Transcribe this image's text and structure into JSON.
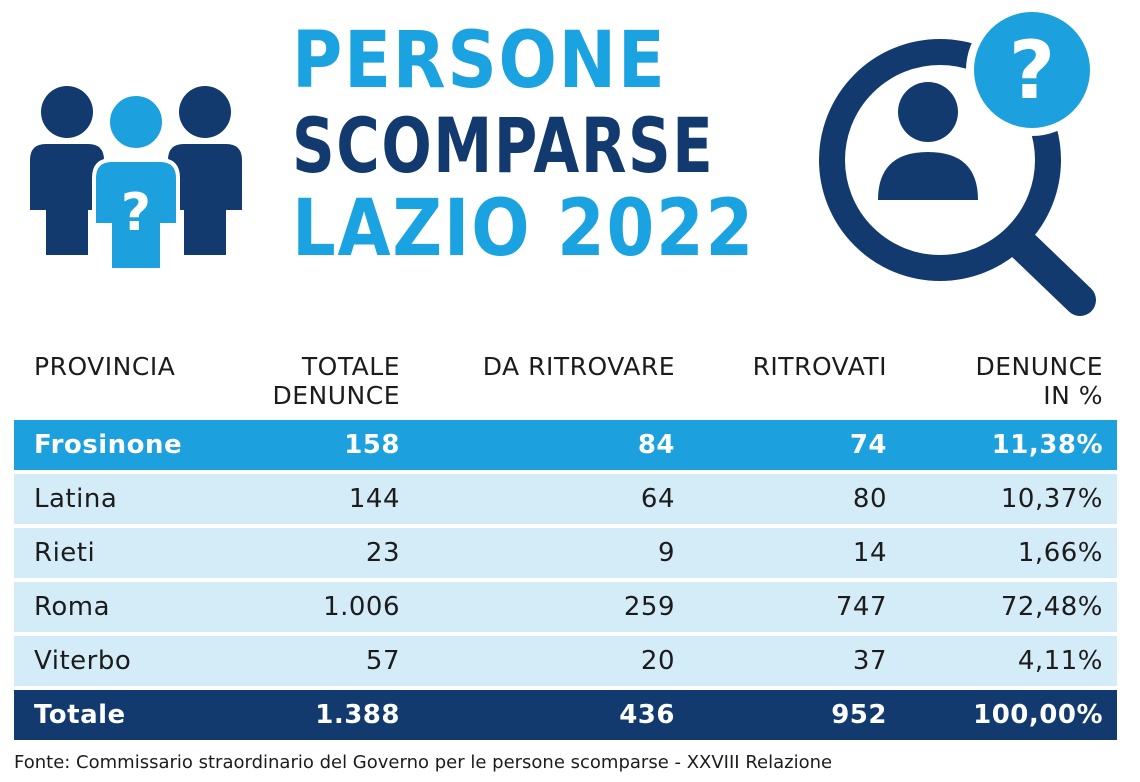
{
  "title": {
    "line1": "PERSONE",
    "line2": "SCOMPARSE",
    "line3": "LAZIO 2022"
  },
  "icons": {
    "left": "people-question-icon",
    "right": "magnifier-person-question-icon"
  },
  "colors": {
    "light_blue": "#1ca1de",
    "dark_blue": "#123a6e",
    "row_bg": "#d4ecf8"
  },
  "chart_data": {
    "type": "table",
    "columns": [
      "PROVINCIA",
      "TOTALE DENUNCE",
      "DA RITROVARE",
      "RITROVATI",
      "DENUNCE IN %"
    ],
    "rows": [
      {
        "provincia": "Frosinone",
        "totale": "158",
        "da_ritrovare": "84",
        "ritrovati": "74",
        "percent": "11,38%"
      },
      {
        "provincia": "Latina",
        "totale": "144",
        "da_ritrovare": "64",
        "ritrovati": "80",
        "percent": "10,37%"
      },
      {
        "provincia": "Rieti",
        "totale": "23",
        "da_ritrovare": "9",
        "ritrovati": "14",
        "percent": "1,66%"
      },
      {
        "provincia": "Roma",
        "totale": "1.006",
        "da_ritrovare": "259",
        "ritrovati": "747",
        "percent": "72,48%"
      },
      {
        "provincia": "Viterbo",
        "totale": "57",
        "da_ritrovare": "20",
        "ritrovati": "37",
        "percent": "4,11%"
      }
    ],
    "total": {
      "provincia": "Totale",
      "totale": "1.388",
      "da_ritrovare": "436",
      "ritrovati": "952",
      "percent": "100,00%"
    }
  },
  "source": "Fonte: Commissario straordinario del Governo per le persone scomparse - XXVIII Relazione"
}
